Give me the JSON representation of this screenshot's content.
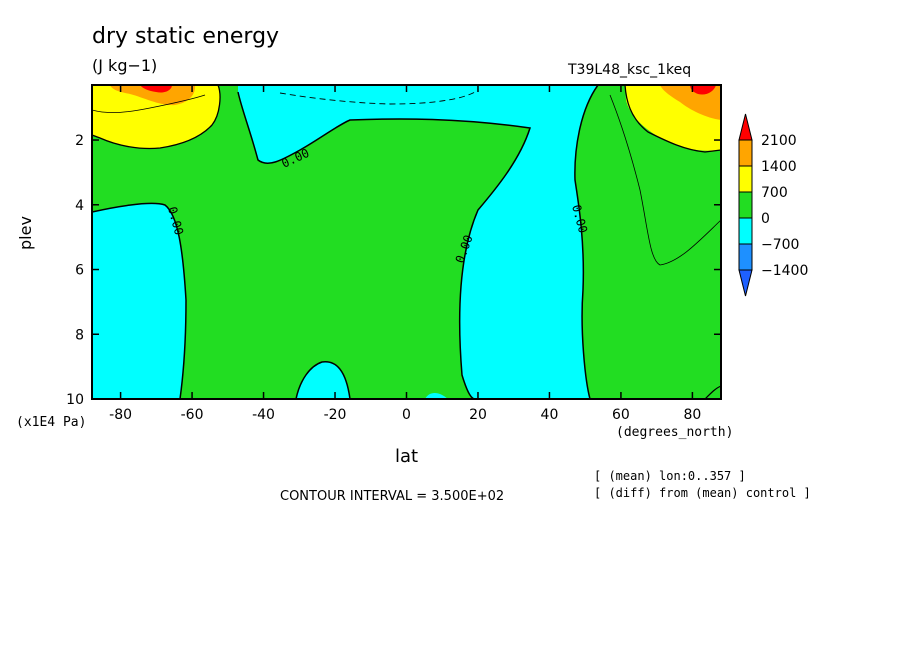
{
  "header": {
    "title": "dry static energy",
    "units": "(J kg−1)",
    "run_name": "T39L48_ksc_1keq"
  },
  "footer": {
    "contour_interval": "CONTOUR INTERVAL = 3.500E+02",
    "note_mean": "[ (mean) lon:0..357 ]",
    "note_diff": "[ (diff) from (mean) control ]"
  },
  "colors": {
    "c_m1400": "#1e90ff",
    "c_m700": "#00ffff",
    "c_0": "#22dd22",
    "c_700": "#ffff00",
    "c_1400": "#ffa500",
    "c_2100": "#ff0000",
    "c_low": "#1e60ff"
  },
  "chart_data": {
    "type": "contour",
    "xlabel": "lat",
    "x_unit": "(degrees_north)",
    "ylabel": "plev",
    "y_unit": "(x1E4 Pa)",
    "xlim": [
      -88,
      88
    ],
    "ylim": [
      10,
      0.3
    ],
    "x_ticks": [
      "-80",
      "-60",
      "-40",
      "-20",
      "0",
      "20",
      "40",
      "60",
      "80"
    ],
    "y_ticks": [
      "2",
      "4",
      "6",
      "8",
      "10"
    ],
    "contour_labels": [
      "0.00",
      "0.00",
      "0.00",
      "0.00"
    ],
    "colorbar": {
      "levels": [
        "2100",
        "1400",
        "700",
        "0",
        "−700",
        "−1400"
      ],
      "colors": [
        "#ff0000",
        "#ffa500",
        "#ffff00",
        "#22dd22",
        "#00ffff",
        "#1e90ff",
        "#1e60ff"
      ]
    }
  }
}
